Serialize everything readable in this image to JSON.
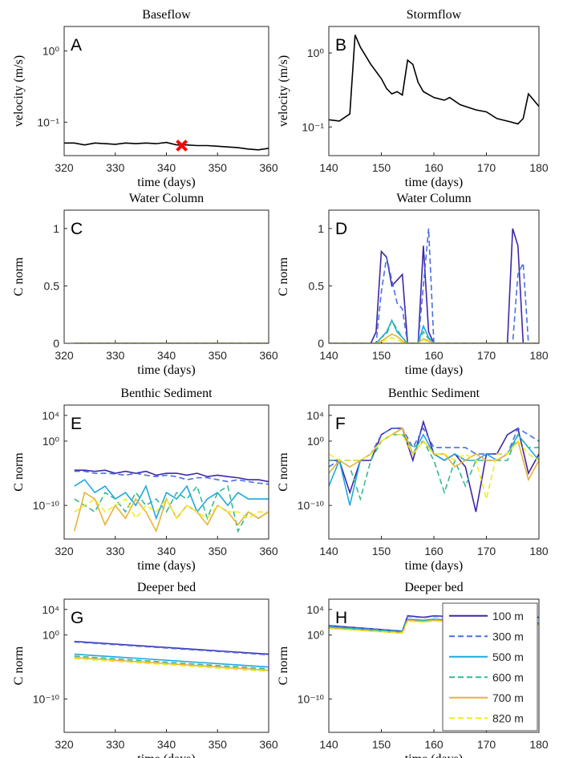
{
  "chart_data": [
    {
      "type": "line",
      "title": "Baseflow",
      "panel_label": "A",
      "xlabel": "time (days)",
      "ylabel": "velocity (m/s)",
      "log_y": true,
      "xlim": [
        320,
        360
      ],
      "xticks": [
        320,
        330,
        340,
        350,
        360
      ],
      "ylim": [
        0.034,
        2.2
      ],
      "yticks": [
        {
          "value": 0.1,
          "label": "10⁻¹"
        },
        {
          "value": 1,
          "label": "10⁰"
        }
      ],
      "x": [
        320,
        322,
        324,
        326,
        328,
        330,
        332,
        334,
        336,
        338,
        340,
        342,
        344,
        346,
        348,
        350,
        352,
        354,
        356,
        358,
        360
      ],
      "series": [
        {
          "color": "#000000",
          "dashed": false,
          "values": [
            0.051,
            0.051,
            0.048,
            0.051,
            0.05,
            0.049,
            0.051,
            0.05,
            0.051,
            0.05,
            0.052,
            0.048,
            0.048,
            0.047,
            0.047,
            0.046,
            0.045,
            0.044,
            0.042,
            0.041,
            0.043
          ]
        }
      ],
      "highlight": {
        "x": 343,
        "y": 0.047,
        "color": "#ff0000"
      }
    },
    {
      "type": "line",
      "title": "Stormflow",
      "panel_label": "B",
      "xlabel": "time (days)",
      "ylabel": "velocity (m/s)",
      "log_y": true,
      "xlim": [
        140,
        180
      ],
      "xticks": [
        140,
        150,
        160,
        170,
        180
      ],
      "ylim": [
        0.041,
        2.28
      ],
      "yticks": [
        {
          "value": 0.1,
          "label": "10⁻¹"
        },
        {
          "value": 1,
          "label": "10⁰"
        }
      ],
      "x": [
        140,
        142,
        144,
        145,
        146,
        148,
        150,
        151,
        152,
        153,
        154,
        155,
        156,
        157,
        158,
        160,
        162,
        163,
        165,
        168,
        170,
        172,
        174,
        176,
        177,
        178,
        180
      ],
      "series": [
        {
          "color": "#000000",
          "dashed": false,
          "values": [
            0.125,
            0.12,
            0.15,
            1.75,
            1.2,
            0.7,
            0.45,
            0.33,
            0.28,
            0.3,
            0.27,
            0.8,
            0.7,
            0.4,
            0.3,
            0.25,
            0.23,
            0.25,
            0.2,
            0.17,
            0.16,
            0.13,
            0.12,
            0.11,
            0.13,
            0.28,
            0.19
          ]
        }
      ]
    },
    {
      "type": "line",
      "title": "Water Column",
      "panel_label": "C",
      "xlabel": "time (days)",
      "ylabel": "C norm",
      "log_y": false,
      "xlim": [
        320,
        360
      ],
      "xticks": [
        320,
        330,
        340,
        350,
        360
      ],
      "ylim": [
        0,
        1.16
      ],
      "yticks": [
        0,
        0.5,
        1
      ],
      "x": [
        322,
        360
      ],
      "series": [
        {
          "color": "#3e26a8",
          "dashed": false,
          "values": [
            0,
            0
          ]
        },
        {
          "color": "#4a6fe3",
          "dashed": true,
          "values": [
            0,
            0
          ]
        },
        {
          "color": "#1fa8de",
          "dashed": false,
          "values": [
            0,
            0
          ]
        },
        {
          "color": "#35b994",
          "dashed": true,
          "values": [
            0,
            0
          ]
        },
        {
          "color": "#e8b23a",
          "dashed": false,
          "values": [
            0,
            0
          ]
        },
        {
          "color": "#f0ee1c",
          "dashed": true,
          "values": [
            0,
            0
          ]
        }
      ]
    },
    {
      "type": "line",
      "title": "Water Column",
      "panel_label": "D",
      "xlabel": "time (days)",
      "ylabel": "C norm",
      "log_y": false,
      "xlim": [
        140,
        180
      ],
      "xticks": [
        140,
        150,
        160,
        170,
        180
      ],
      "ylim": [
        0,
        1.16
      ],
      "yticks": [
        0,
        0.5,
        1
      ],
      "x": [
        140,
        148,
        149,
        150,
        151,
        152,
        153,
        154,
        155,
        156,
        157,
        158,
        159,
        160,
        173,
        174,
        175,
        176,
        177,
        178,
        180
      ],
      "series": [
        {
          "color": "#3e26a8",
          "dashed": false,
          "values": [
            0,
            0,
            0.1,
            0.8,
            0.75,
            0.5,
            0.55,
            0.6,
            0,
            0,
            0,
            0.85,
            0.1,
            0,
            0,
            0,
            1.0,
            0.85,
            0,
            0,
            0
          ]
        },
        {
          "color": "#4a6fe3",
          "dashed": true,
          "values": [
            0,
            0,
            0,
            0.45,
            0.75,
            0.55,
            0.35,
            0.3,
            0,
            0,
            0,
            0.5,
            1.0,
            0,
            0,
            0,
            0,
            0.6,
            0.7,
            0,
            0
          ]
        },
        {
          "color": "#1fa8de",
          "dashed": false,
          "values": [
            0,
            0,
            0,
            0.05,
            0.1,
            0.2,
            0.1,
            0.05,
            0,
            0,
            0,
            0.15,
            0.05,
            0,
            0,
            0,
            0,
            0,
            0,
            0,
            0
          ]
        },
        {
          "color": "#35b994",
          "dashed": true,
          "values": [
            0,
            0,
            0,
            0.05,
            0.08,
            0.2,
            0.12,
            0.05,
            0,
            0,
            0,
            0.1,
            0.04,
            0,
            0,
            0,
            0,
            0,
            0,
            0,
            0
          ]
        },
        {
          "color": "#e8b23a",
          "dashed": false,
          "values": [
            0,
            0,
            0,
            0.02,
            0.05,
            0.08,
            0.06,
            0.02,
            0,
            0,
            0,
            0.04,
            0.02,
            0,
            0,
            0,
            0,
            0,
            0,
            0,
            0
          ]
        },
        {
          "color": "#f0ee1c",
          "dashed": true,
          "values": [
            0,
            0,
            0,
            0.01,
            0.03,
            0.05,
            0.03,
            0.01,
            0,
            0,
            0,
            0.03,
            0.01,
            0,
            0,
            0,
            0,
            0,
            0,
            0,
            0
          ]
        }
      ]
    },
    {
      "type": "line",
      "title": "Benthic Sediment",
      "panel_label": "E",
      "xlabel": "time (days)",
      "ylabel": "C norm",
      "log_y": true,
      "xlim": [
        320,
        360
      ],
      "xticks": [
        320,
        330,
        340,
        350,
        360
      ],
      "ylim": [
        6e-16,
        400000
      ],
      "yticks": [
        {
          "value": 1e-10,
          "label": "10⁻¹⁰"
        },
        {
          "value": 1,
          "label": "10⁰"
        },
        {
          "value": 10000,
          "label": "10⁴"
        }
      ],
      "x": [
        322,
        324,
        326,
        328,
        330,
        332,
        334,
        336,
        338,
        340,
        342,
        344,
        346,
        348,
        350,
        352,
        354,
        356,
        358,
        360
      ],
      "series": [
        {
          "color": "#3e26a8",
          "dashed": false,
          "values": [
            3e-05,
            3e-05,
            2e-05,
            3e-05,
            1e-05,
            2e-05,
            1e-05,
            2e-05,
            5e-06,
            1e-05,
            1e-05,
            5e-06,
            1e-05,
            3e-06,
            5e-06,
            3e-06,
            2e-06,
            1e-06,
            1e-06,
            5e-07
          ]
        },
        {
          "color": "#4a6fe3",
          "dashed": true,
          "values": [
            2e-05,
            2e-05,
            1e-05,
            1e-05,
            8e-06,
            5e-06,
            1e-05,
            5e-06,
            3e-06,
            5e-06,
            3e-06,
            1e-06,
            2e-06,
            2e-06,
            1e-06,
            5e-07,
            1e-06,
            5e-07,
            3e-07,
            2e-07
          ]
        },
        {
          "color": "#1fa8de",
          "dashed": false,
          "values": [
            1e-07,
            1e-06,
            1e-08,
            1e-07,
            1e-09,
            1e-08,
            1e-10,
            1e-07,
            1e-12,
            1e-08,
            1e-09,
            1e-07,
            1e-11,
            1e-09,
            1e-08,
            1e-10,
            1e-08,
            1e-09,
            1e-09,
            1e-09
          ]
        },
        {
          "color": "#35b994",
          "dashed": true,
          "values": [
            1e-09,
            1e-10,
            1e-11,
            1e-08,
            1e-09,
            1e-11,
            1e-08,
            1e-10,
            1e-09,
            1e-11,
            1e-08,
            1e-09,
            1e-07,
            1e-12,
            1e-08,
            1e-07,
            1e-14,
            1e-11,
            1e-12,
            1e-11
          ]
        },
        {
          "color": "#e8b23a",
          "dashed": false,
          "values": [
            1e-14,
            1e-08,
            1e-09,
            1e-13,
            1e-10,
            1e-12,
            1e-09,
            1e-11,
            1e-14,
            1e-09,
            1e-12,
            1e-10,
            1e-11,
            1e-13,
            1e-10,
            1e-11,
            1e-13,
            1e-11,
            1e-12,
            1e-11
          ]
        },
        {
          "color": "#f0ee1c",
          "dashed": true,
          "values": [
            1e-11,
            1e-10,
            1e-09,
            1e-11,
            1e-10,
            1e-09,
            1e-12,
            1e-10,
            1e-11,
            1e-09,
            1e-12,
            1e-10,
            1e-11,
            1e-12,
            1e-10,
            1e-11,
            1e-11,
            1e-12,
            1e-11,
            1e-11
          ]
        }
      ]
    },
    {
      "type": "line",
      "title": "Benthic Sediment",
      "panel_label": "F",
      "xlabel": "time (days)",
      "ylabel": "C norm",
      "log_y": true,
      "xlim": [
        140,
        180
      ],
      "xticks": [
        140,
        150,
        160,
        170,
        180
      ],
      "ylim": [
        6e-16,
        400000
      ],
      "yticks": [
        {
          "value": 1e-10,
          "label": "10⁻¹⁰"
        },
        {
          "value": 1,
          "label": "10⁰"
        },
        {
          "value": 10000,
          "label": "10⁴"
        }
      ],
      "x": [
        140,
        142,
        144,
        146,
        148,
        150,
        152,
        154,
        156,
        158,
        160,
        162,
        164,
        166,
        168,
        170,
        172,
        174,
        176,
        178,
        180
      ],
      "series": [
        {
          "color": "#3e26a8",
          "dashed": false,
          "values": [
            0.001,
            0.001,
            1e-08,
            0.001,
            0.001,
            10,
            100,
            100,
            0.001,
            1000,
            0.01,
            0.001,
            0.01,
            0.0001,
            1e-11,
            0.01,
            0.01,
            10,
            100,
            1e-05,
            0.01
          ]
        },
        {
          "color": "#4a6fe3",
          "dashed": true,
          "values": [
            0.0001,
            0.001,
            0.001,
            0.001,
            0.01,
            10,
            100,
            100,
            0.1,
            100,
            0.1,
            0.1,
            0.1,
            0.1,
            0.01,
            0.01,
            0.01,
            0.01,
            100,
            10,
            1
          ]
        },
        {
          "color": "#1fa8de",
          "dashed": false,
          "values": [
            1e-07,
            0.001,
            1e-10,
            0.001,
            0.01,
            1,
            10,
            100,
            0.01,
            10,
            0.01,
            0.001,
            0.01,
            0.001,
            0.001,
            0.01,
            0.001,
            0.01,
            10,
            0.1,
            0.001
          ]
        },
        {
          "color": "#35b994",
          "dashed": true,
          "values": [
            0.001,
            0.001,
            0.0001,
            1e-09,
            0.001,
            1,
            10,
            10,
            0.1,
            1,
            0.001,
            1e-08,
            0.001,
            1e-07,
            0.001,
            0.001,
            0.001,
            0.001,
            10,
            0.1,
            0.1
          ]
        },
        {
          "color": "#e8b23a",
          "dashed": false,
          "values": [
            1e-05,
            0.001,
            0.0001,
            0.001,
            0.01,
            1,
            10,
            100,
            0.01,
            1,
            0.01,
            0.01,
            0.0001,
            0.001,
            0.01,
            0.001,
            0.001,
            0.01,
            1,
            1e-06,
            0.001
          ]
        },
        {
          "color": "#f0ee1c",
          "dashed": true,
          "values": [
            0.01,
            0.001,
            0.001,
            0.001,
            0.01,
            1,
            10,
            10,
            0.01,
            1,
            0.01,
            0.01,
            0.001,
            0.01,
            0.001,
            1e-09,
            0.01,
            0.01,
            1,
            0.01,
            0.001
          ]
        }
      ]
    },
    {
      "type": "line",
      "title": "Deeper bed",
      "panel_label": "G",
      "xlabel": "time (days)",
      "ylabel": "C norm",
      "log_y": true,
      "xlim": [
        320,
        360
      ],
      "xticks": [
        320,
        330,
        340,
        350,
        360
      ],
      "ylim": [
        6e-16,
        400000
      ],
      "yticks": [
        {
          "value": 1e-10,
          "label": "10⁻¹⁰"
        },
        {
          "value": 1,
          "label": "10⁰"
        },
        {
          "value": 10000,
          "label": "10⁴"
        }
      ],
      "x": [
        322,
        360
      ],
      "series": [
        {
          "color": "#3e26a8",
          "dashed": false,
          "values": [
            0.1,
            0.001
          ]
        },
        {
          "color": "#4a6fe3",
          "dashed": true,
          "values": [
            0.08,
            0.0008
          ]
        },
        {
          "color": "#1fa8de",
          "dashed": false,
          "values": [
            0.001,
            1e-05
          ]
        },
        {
          "color": "#35b994",
          "dashed": true,
          "values": [
            0.0005,
            5e-06
          ]
        },
        {
          "color": "#e8b23a",
          "dashed": false,
          "values": [
            0.0003,
            3e-06
          ]
        },
        {
          "color": "#f0ee1c",
          "dashed": true,
          "values": [
            0.0002,
            2e-06
          ]
        }
      ]
    },
    {
      "type": "line",
      "title": "Deeper bed",
      "panel_label": "H",
      "xlabel": "time (days)",
      "ylabel": "C norm",
      "log_y": true,
      "xlim": [
        140,
        180
      ],
      "xticks": [
        140,
        150,
        160,
        170,
        180
      ],
      "ylim": [
        6e-16,
        400000
      ],
      "yticks": [
        {
          "value": 1e-10,
          "label": "10⁻¹⁰"
        },
        {
          "value": 1,
          "label": "10⁰"
        },
        {
          "value": 10000,
          "label": "10⁴"
        }
      ],
      "legend": "lower right",
      "x": [
        140,
        154,
        155,
        158,
        160,
        176,
        177,
        180
      ],
      "series": [
        {
          "name": "100 m",
          "color": "#3e26a8",
          "dashed": false,
          "values": [
            30,
            4,
            1000,
            600,
            1000,
            300,
            800,
            600
          ]
        },
        {
          "name": "300 m",
          "color": "#4a6fe3",
          "dashed": true,
          "values": [
            25,
            4,
            800,
            500,
            800,
            250,
            600,
            500
          ]
        },
        {
          "name": "500 m",
          "color": "#1fa8de",
          "dashed": false,
          "values": [
            20,
            3,
            300,
            200,
            300,
            60,
            80,
            70
          ]
        },
        {
          "name": "600 m",
          "color": "#35b994",
          "dashed": true,
          "values": [
            15,
            3,
            250,
            150,
            250,
            50,
            60,
            55
          ]
        },
        {
          "name": "700 m",
          "color": "#e8b23a",
          "dashed": false,
          "values": [
            12,
            2,
            200,
            120,
            200,
            40,
            50,
            45
          ]
        },
        {
          "name": "820 m",
          "color": "#f0ee1c",
          "dashed": true,
          "values": [
            10,
            2,
            150,
            100,
            150,
            30,
            40,
            35
          ]
        }
      ]
    }
  ]
}
